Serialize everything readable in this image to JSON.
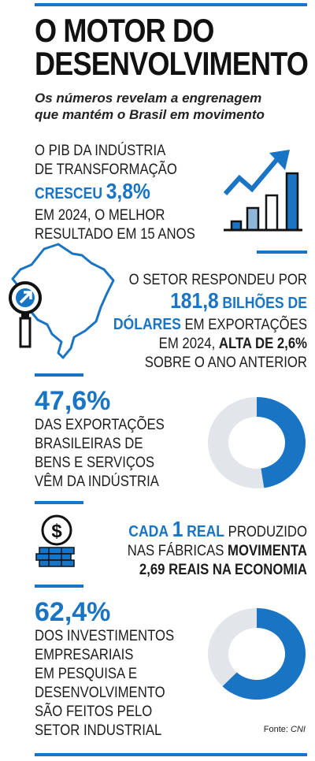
{
  "header": {
    "title_line1": "O MOTOR DO",
    "title_line2": "DESENVOLVIMENTO",
    "subtitle_line1": "Os números revelam a engrenagem",
    "subtitle_line2": "que mantém o Brasil em movimento"
  },
  "pib": {
    "line1": "O PIB DA INDÚSTRIA",
    "line2": "DE TRANSFORMAÇÃO",
    "verb": "CRESCEU",
    "value": "3,8%",
    "line4": "EM 2024, O MELHOR",
    "line5": "RESULTADO EM 15 ANOS"
  },
  "export": {
    "line1": "O SETOR RESPONDEU POR",
    "value": "181,8",
    "unit_a": "BILHÕES DE",
    "unit_b": "DÓLARES",
    "line3_rest": "EM EXPORTAÇÕES",
    "line4_a": "EM 2024,",
    "line4_b": "ALTA DE 2,6%",
    "line5": "SOBRE O ANO ANTERIOR"
  },
  "share_exports": {
    "value": "47,6%",
    "fraction": 0.476,
    "line1": "DAS EXPORTAÇÕES",
    "line2": "BRASILEIRAS DE",
    "line3": "BENS E SERVIÇOS",
    "line4": "VÊM DA INDÚSTRIA"
  },
  "multiplier": {
    "a": "CADA",
    "b": "1",
    "c": "REAL",
    "d": "PRODUZIDO",
    "e": "NAS FÁBRICAS",
    "f": "MOVIMENTA",
    "g": "2,69 REAIS NA ECONOMIA",
    "dollar_symbol": "$"
  },
  "research": {
    "value": "62,4%",
    "fraction": 0.624,
    "line1": "DOS INVESTIMENTOS",
    "line2": "EMPRESARIAIS",
    "line3": "EM PESQUISA E",
    "line4": "DESENVOLVIMENTO",
    "line5": "SÃO FEITOS PELO",
    "line6": "SETOR INDUSTRIAL"
  },
  "source": {
    "label": "Fonte:",
    "name": "CNI"
  },
  "colors": {
    "accent": "#1a74c4",
    "donut_rest": "#e2e6ea",
    "text": "#141414"
  }
}
